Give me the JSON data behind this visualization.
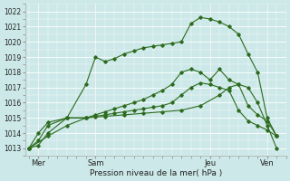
{
  "xlabel": "Pression niveau de la mer( hPa )",
  "bg_color": "#cce8e8",
  "grid_color": "#ffffff",
  "line_color": "#2d6b1e",
  "ylim": [
    1012.5,
    1022.5
  ],
  "yticks": [
    1013,
    1014,
    1015,
    1016,
    1017,
    1018,
    1019,
    1020,
    1021,
    1022
  ],
  "xlim": [
    -0.2,
    13.5
  ],
  "day_positions": [
    0.5,
    3.5,
    9.5,
    12.5
  ],
  "day_labels": [
    "Mer",
    "Sam",
    "Jeu",
    "Ven"
  ],
  "vline_positions": [
    0.5,
    3.5,
    9.5,
    12.5
  ],
  "series": [
    {
      "x": [
        0,
        1,
        2,
        3,
        4,
        5,
        6,
        7,
        8,
        9,
        10,
        10.5,
        11,
        11.5,
        12,
        12.5,
        13
      ],
      "y": [
        1013.0,
        1013.8,
        1014.5,
        1015.0,
        1015.1,
        1015.2,
        1015.3,
        1015.4,
        1015.5,
        1015.8,
        1016.5,
        1017.0,
        1017.2,
        1017.0,
        1016.0,
        1014.5,
        1013.0
      ]
    },
    {
      "x": [
        0,
        0.5,
        1,
        2,
        3,
        3.5,
        4,
        4.5,
        5,
        5.5,
        6,
        6.5,
        7,
        7.5,
        8,
        8.5,
        9,
        9.5,
        10,
        10.5,
        11,
        11.5,
        12,
        12.5,
        13
      ],
      "y": [
        1013.0,
        1014.0,
        1014.7,
        1015.0,
        1017.2,
        1019.0,
        1018.7,
        1018.9,
        1019.2,
        1019.4,
        1019.6,
        1019.7,
        1019.8,
        1019.9,
        1020.0,
        1021.2,
        1021.6,
        1021.5,
        1021.3,
        1021.0,
        1020.5,
        1019.2,
        1018.0,
        1015.0,
        1013.8
      ]
    },
    {
      "x": [
        0,
        0.5,
        1,
        2,
        3,
        3.5,
        4,
        4.5,
        5,
        5.5,
        6,
        6.5,
        7,
        7.5,
        8,
        8.5,
        9,
        9.5,
        10,
        10.5,
        11,
        11.5,
        12,
        12.5,
        13
      ],
      "y": [
        1013.0,
        1013.5,
        1014.5,
        1015.0,
        1015.0,
        1015.2,
        1015.4,
        1015.6,
        1015.8,
        1016.0,
        1016.2,
        1016.5,
        1016.8,
        1017.2,
        1018.0,
        1018.2,
        1018.0,
        1017.5,
        1018.2,
        1017.5,
        1017.2,
        1015.8,
        1015.2,
        1014.8,
        1013.8
      ]
    },
    {
      "x": [
        0,
        0.5,
        1,
        2,
        3,
        3.5,
        4,
        4.5,
        5,
        5.5,
        6,
        6.5,
        7,
        7.5,
        8,
        8.5,
        9,
        9.5,
        10,
        10.5,
        11,
        11.5,
        12,
        12.5,
        13
      ],
      "y": [
        1013.0,
        1013.2,
        1014.0,
        1015.0,
        1015.0,
        1015.1,
        1015.2,
        1015.3,
        1015.4,
        1015.5,
        1015.6,
        1015.7,
        1015.8,
        1016.0,
        1016.5,
        1017.0,
        1017.3,
        1017.2,
        1017.0,
        1016.8,
        1015.5,
        1014.8,
        1014.5,
        1014.2,
        1013.8
      ]
    }
  ]
}
